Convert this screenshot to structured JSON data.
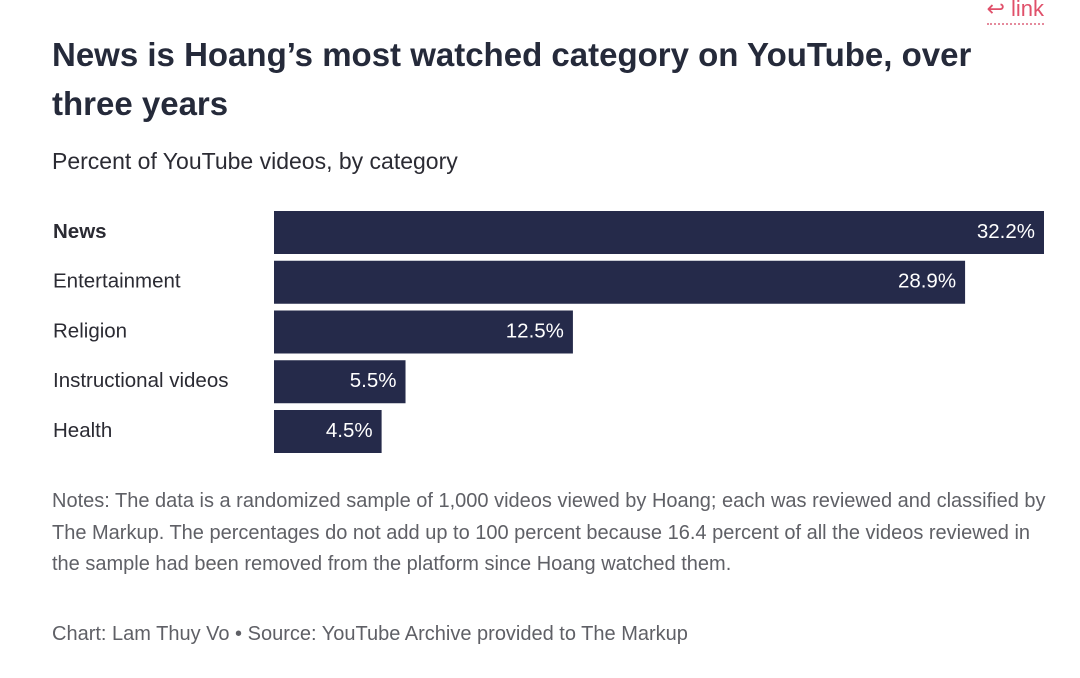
{
  "link": {
    "icon": "return-arrow-icon",
    "label": "link"
  },
  "title": "News is Hoang’s most watched category on YouTube, over three years",
  "subtitle": "Percent of YouTube videos, by category",
  "notes": "Notes: The data is a randomized sample of 1,000 videos viewed by Hoang; each was reviewed and classified by The Markup. The percentages do not add up to 100 percent because 16.4 percent of all the videos reviewed in the sample had been removed from the platform since Hoang watched them.",
  "credit": "Chart: Lam Thuy Vo • Source: YouTube Archive provided to The Markup",
  "colors": {
    "bar": "#252a4a",
    "link": "#e0506a"
  },
  "chart_data": {
    "type": "bar",
    "orientation": "horizontal",
    "title": "News is Hoang’s most watched category on YouTube, over three years",
    "subtitle": "Percent of YouTube videos, by category",
    "categories": [
      "News",
      "Entertainment",
      "Religion",
      "Instructional videos",
      "Health"
    ],
    "values": [
      32.2,
      28.9,
      12.5,
      5.5,
      4.5
    ],
    "value_labels": [
      "32.2%",
      "28.9%",
      "12.5%",
      "5.5%",
      "4.5%"
    ],
    "xlim": [
      0,
      32.2
    ],
    "grid": false,
    "legend": "none"
  }
}
